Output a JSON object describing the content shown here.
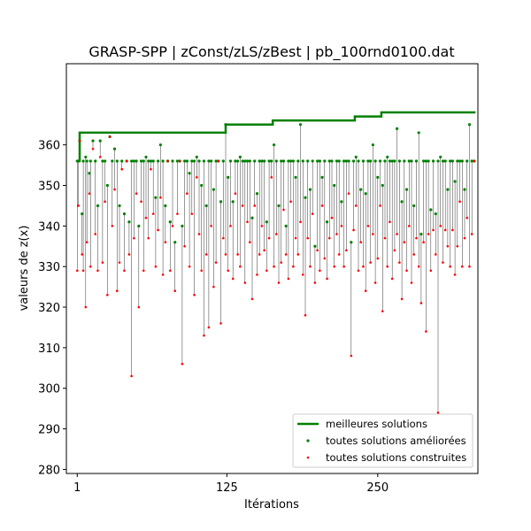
{
  "chart_data": {
    "type": "scatter",
    "title": "GRASP-SPP | zConst/zLS/zBest | pb_100rnd0100.dat",
    "xlabel": "Itérations",
    "ylabel": "valeurs de z(x)",
    "xlim": [
      -8,
      333
    ],
    "ylim": [
      279,
      380
    ],
    "xticks": [
      1,
      125,
      250
    ],
    "yticks": [
      280,
      290,
      300,
      310,
      320,
      330,
      340,
      350,
      360
    ],
    "grid": false,
    "legend_position": "lower-right",
    "colors": {
      "best": "#008000",
      "improved": "#008000",
      "constructed": "#ff0000",
      "vline": "#000000"
    },
    "best_steps": [
      {
        "x": 1,
        "y": 356
      },
      {
        "x": 3,
        "y": 363
      },
      {
        "x": 124,
        "y": 365
      },
      {
        "x": 163,
        "y": 366
      },
      {
        "x": 231,
        "y": 367
      },
      {
        "x": 253,
        "y": 368
      },
      {
        "x": 331,
        "y": 368
      }
    ],
    "series": [
      {
        "name": "meilleures solutions",
        "values": []
      },
      {
        "name": "toutes solutions améliorées",
        "values": []
      },
      {
        "name": "toutes solutions construites",
        "values": []
      }
    ],
    "samples": [
      [
        1,
        329,
        356
      ],
      [
        2,
        345,
        356
      ],
      [
        3,
        361,
        361
      ],
      [
        5,
        333,
        343
      ],
      [
        6,
        329,
        356
      ],
      [
        8,
        320,
        357
      ],
      [
        9,
        336,
        356
      ],
      [
        11,
        348,
        353
      ],
      [
        12,
        330,
        356
      ],
      [
        14,
        359,
        361
      ],
      [
        16,
        338,
        356
      ],
      [
        18,
        329,
        345
      ],
      [
        20,
        357,
        361
      ],
      [
        22,
        331,
        356
      ],
      [
        24,
        346,
        356
      ],
      [
        26,
        323,
        350
      ],
      [
        28,
        362,
        362
      ],
      [
        30,
        340,
        356
      ],
      [
        32,
        349,
        359
      ],
      [
        34,
        324,
        356
      ],
      [
        36,
        331,
        345
      ],
      [
        38,
        354,
        356
      ],
      [
        40,
        329,
        343
      ],
      [
        42,
        356,
        356
      ],
      [
        44,
        333,
        341
      ],
      [
        46,
        303,
        356
      ],
      [
        48,
        337,
        356
      ],
      [
        50,
        348,
        356
      ],
      [
        52,
        320,
        340
      ],
      [
        54,
        346,
        356
      ],
      [
        56,
        329,
        356
      ],
      [
        58,
        342,
        357
      ],
      [
        60,
        337,
        356
      ],
      [
        62,
        354,
        356
      ],
      [
        64,
        343,
        356
      ],
      [
        66,
        330,
        347
      ],
      [
        68,
        339,
        356
      ],
      [
        70,
        347,
        360
      ],
      [
        72,
        328,
        356
      ],
      [
        74,
        336,
        345
      ],
      [
        76,
        356,
        356
      ],
      [
        78,
        329,
        341
      ],
      [
        80,
        340,
        356
      ],
      [
        82,
        324,
        336
      ],
      [
        84,
        343,
        356
      ],
      [
        86,
        356,
        356
      ],
      [
        88,
        306,
        340
      ],
      [
        90,
        335,
        356
      ],
      [
        92,
        348,
        356
      ],
      [
        94,
        330,
        353
      ],
      [
        96,
        343,
        356
      ],
      [
        98,
        323,
        356
      ],
      [
        100,
        352,
        357
      ],
      [
        102,
        338,
        356
      ],
      [
        104,
        329,
        350
      ],
      [
        106,
        313,
        356
      ],
      [
        108,
        333,
        345
      ],
      [
        110,
        315,
        356
      ],
      [
        112,
        340,
        356
      ],
      [
        114,
        325,
        349
      ],
      [
        116,
        331,
        356
      ],
      [
        118,
        356,
        356
      ],
      [
        120,
        316,
        346
      ],
      [
        122,
        337,
        356
      ],
      [
        124,
        333,
        365
      ],
      [
        126,
        329,
        352
      ],
      [
        128,
        340,
        356
      ],
      [
        130,
        327,
        346
      ],
      [
        132,
        348,
        356
      ],
      [
        134,
        333,
        356
      ],
      [
        136,
        330,
        357
      ],
      [
        138,
        345,
        356
      ],
      [
        140,
        326,
        356
      ],
      [
        142,
        341,
        356
      ],
      [
        144,
        336,
        356
      ],
      [
        146,
        322,
        342
      ],
      [
        148,
        345,
        356
      ],
      [
        150,
        328,
        348
      ],
      [
        152,
        333,
        356
      ],
      [
        154,
        340,
        356
      ],
      [
        156,
        334,
        356
      ],
      [
        158,
        329,
        341
      ],
      [
        160,
        337,
        356
      ],
      [
        162,
        352,
        356
      ],
      [
        164,
        330,
        360
      ],
      [
        166,
        338,
        356
      ],
      [
        168,
        326,
        345
      ],
      [
        170,
        331,
        356
      ],
      [
        172,
        344,
        356
      ],
      [
        174,
        333,
        340
      ],
      [
        176,
        327,
        356
      ],
      [
        178,
        346,
        356
      ],
      [
        180,
        330,
        356
      ],
      [
        182,
        337,
        352
      ],
      [
        184,
        333,
        356
      ],
      [
        186,
        341,
        365
      ],
      [
        188,
        328,
        356
      ],
      [
        190,
        318,
        347
      ],
      [
        192,
        337,
        356
      ],
      [
        194,
        330,
        349
      ],
      [
        196,
        343,
        356
      ],
      [
        198,
        326,
        335
      ],
      [
        200,
        334,
        356
      ],
      [
        202,
        329,
        356
      ],
      [
        204,
        345,
        352
      ],
      [
        206,
        332,
        356
      ],
      [
        208,
        327,
        341
      ],
      [
        210,
        337,
        356
      ],
      [
        212,
        342,
        356
      ],
      [
        214,
        330,
        350
      ],
      [
        216,
        338,
        356
      ],
      [
        218,
        333,
        356
      ],
      [
        220,
        340,
        346
      ],
      [
        222,
        330,
        356
      ],
      [
        224,
        334,
        356
      ],
      [
        226,
        348,
        356
      ],
      [
        228,
        308,
        336
      ],
      [
        230,
        339,
        356
      ],
      [
        232,
        345,
        357
      ],
      [
        234,
        329,
        356
      ],
      [
        236,
        336,
        349
      ],
      [
        238,
        330,
        356
      ],
      [
        240,
        324,
        348
      ],
      [
        242,
        340,
        356
      ],
      [
        244,
        331,
        356
      ],
      [
        246,
        338,
        360
      ],
      [
        248,
        326,
        356
      ],
      [
        250,
        332,
        352
      ],
      [
        252,
        345,
        356
      ],
      [
        254,
        319,
        350
      ],
      [
        256,
        337,
        356
      ],
      [
        258,
        330,
        357
      ],
      [
        260,
        341,
        356
      ],
      [
        262,
        327,
        356
      ],
      [
        264,
        334,
        356
      ],
      [
        266,
        338,
        364
      ],
      [
        268,
        331,
        356
      ],
      [
        270,
        322,
        346
      ],
      [
        272,
        336,
        356
      ],
      [
        274,
        329,
        349
      ],
      [
        276,
        340,
        356
      ],
      [
        278,
        326,
        356
      ],
      [
        280,
        333,
        345
      ],
      [
        282,
        337,
        356
      ],
      [
        284,
        330,
        363
      ],
      [
        286,
        321,
        338
      ],
      [
        288,
        336,
        356
      ],
      [
        290,
        314,
        356
      ],
      [
        292,
        338,
        356
      ],
      [
        294,
        329,
        344
      ],
      [
        296,
        339,
        356
      ],
      [
        298,
        333,
        343
      ],
      [
        300,
        294,
        356
      ],
      [
        302,
        340,
        357
      ],
      [
        304,
        331,
        356
      ],
      [
        306,
        339,
        356
      ],
      [
        308,
        335,
        349
      ],
      [
        310,
        330,
        356
      ],
      [
        312,
        339,
        356
      ],
      [
        314,
        328,
        351
      ],
      [
        316,
        335,
        356
      ],
      [
        318,
        346,
        356
      ],
      [
        320,
        330,
        356
      ],
      [
        322,
        337,
        349
      ],
      [
        324,
        342,
        356
      ],
      [
        326,
        330,
        365
      ],
      [
        328,
        338,
        356
      ],
      [
        330,
        356,
        356
      ]
    ]
  },
  "legend": {
    "best": "meilleures solutions",
    "improved": "toutes solutions améliorées",
    "constructed": "toutes solutions construites"
  }
}
